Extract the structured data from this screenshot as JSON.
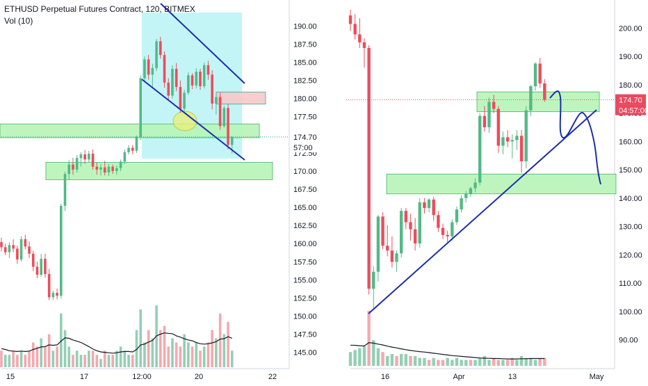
{
  "header": {
    "title": "ETHUSD Perpetual Futures Contract, 120, BITMEX",
    "indicator": "Vol (10)"
  },
  "colors": {
    "up": "#53b987",
    "down": "#eb4d5c",
    "vol_up": "#93cfb4",
    "vol_down": "#f3a9ae",
    "zone_green": "#b8f5b8",
    "zone_green_stroke": "#3aa757",
    "zone_red": "#f7c9c9",
    "wedge": "#b8f3f5",
    "line_blue": "#1c2fa8",
    "price_tag": "#e84a5f",
    "price_tag_dark": "#e84a5f"
  },
  "chart_data": [
    {
      "type": "candlestick",
      "title": "ETHUSD Perpetual Futures Contract, 120, BITMEX",
      "ylim": [
        144.0,
        191.0
      ],
      "y_ticks": [
        "190.00",
        "187.50",
        "185.00",
        "182.50",
        "180.00",
        "177.50",
        "175.00",
        "172.50",
        "170.00",
        "167.50",
        "165.00",
        "162.50",
        "160.00",
        "157.50",
        "155.00",
        "152.50",
        "150.00",
        "147.50",
        "145.00"
      ],
      "x_ticks": [
        "15",
        "17",
        "12:00",
        "20",
        "22"
      ],
      "last_price": "174.70",
      "countdown": "57:00",
      "candles": [
        [
          160.2,
          160.8,
          158.9,
          159.5
        ],
        [
          159.5,
          160.0,
          158.4,
          158.8
        ],
        [
          158.8,
          160.2,
          158.0,
          159.8
        ],
        [
          159.8,
          160.6,
          158.8,
          159.3
        ],
        [
          159.3,
          159.7,
          157.2,
          157.8
        ],
        [
          157.8,
          161.0,
          157.5,
          160.6
        ],
        [
          160.6,
          161.2,
          159.2,
          159.6
        ],
        [
          159.6,
          160.3,
          158.0,
          158.6
        ],
        [
          158.6,
          159.0,
          156.2,
          156.8
        ],
        [
          156.8,
          157.5,
          155.2,
          155.7
        ],
        [
          155.7,
          158.6,
          155.4,
          157.9
        ],
        [
          157.9,
          158.6,
          155.3,
          155.8
        ],
        [
          155.8,
          156.5,
          152.2,
          152.6
        ],
        [
          152.6,
          153.5,
          152.2,
          153.2
        ],
        [
          153.2,
          153.8,
          152.3,
          152.8
        ],
        [
          152.8,
          165.5,
          152.4,
          165.2
        ],
        [
          165.2,
          169.9,
          164.5,
          169.6
        ],
        [
          169.6,
          171.5,
          168.8,
          170.9
        ],
        [
          170.9,
          171.8,
          169.5,
          170.2
        ],
        [
          170.2,
          172.2,
          169.8,
          171.8
        ],
        [
          171.8,
          172.6,
          170.6,
          172.3
        ],
        [
          172.3,
          172.9,
          171.0,
          171.6
        ],
        [
          171.6,
          172.8,
          171.2,
          172.4
        ],
        [
          172.4,
          173.0,
          170.2,
          170.6
        ],
        [
          170.6,
          171.2,
          169.5,
          170.2
        ],
        [
          170.2,
          171.0,
          169.4,
          170.5
        ],
        [
          170.5,
          171.4,
          169.4,
          169.8
        ],
        [
          169.8,
          171.0,
          169.3,
          170.6
        ],
        [
          170.6,
          170.9,
          169.6,
          170.0
        ],
        [
          170.0,
          170.8,
          169.5,
          170.4
        ],
        [
          170.4,
          171.6,
          170.0,
          171.3
        ],
        [
          171.3,
          173.0,
          171.0,
          172.6
        ],
        [
          172.6,
          173.6,
          172.3,
          173.2
        ],
        [
          173.2,
          173.6,
          172.3,
          172.8
        ],
        [
          172.8,
          174.9,
          172.5,
          174.7
        ],
        [
          174.7,
          183.2,
          174.3,
          182.8
        ],
        [
          182.8,
          185.8,
          182.4,
          185.4
        ],
        [
          185.4,
          186.0,
          182.6,
          183.3
        ],
        [
          183.3,
          184.8,
          181.6,
          184.2
        ],
        [
          184.2,
          188.2,
          183.8,
          187.9
        ],
        [
          187.9,
          188.5,
          185.5,
          186.0
        ],
        [
          186.0,
          186.5,
          181.5,
          182.2
        ],
        [
          182.2,
          182.8,
          179.8,
          180.4
        ],
        [
          180.4,
          184.6,
          180.0,
          184.1
        ],
        [
          184.1,
          184.9,
          181.0,
          181.6
        ],
        [
          181.6,
          182.5,
          178.0,
          178.6
        ],
        [
          178.6,
          181.2,
          178.3,
          180.8
        ],
        [
          180.8,
          183.6,
          180.5,
          183.2
        ],
        [
          183.2,
          183.5,
          181.3,
          181.8
        ],
        [
          181.8,
          184.2,
          181.4,
          183.7
        ],
        [
          183.7,
          184.1,
          181.2,
          181.7
        ],
        [
          181.7,
          185.0,
          181.4,
          184.6
        ],
        [
          184.6,
          185.2,
          182.6,
          183.3
        ],
        [
          183.3,
          183.9,
          178.5,
          179.3
        ],
        [
          179.3,
          180.6,
          177.8,
          180.2
        ],
        [
          180.2,
          180.8,
          175.7,
          176.2
        ],
        [
          176.2,
          179.0,
          176.0,
          178.7
        ],
        [
          178.7,
          179.2,
          173.0,
          173.6
        ],
        [
          173.6,
          174.8,
          172.4,
          174.7
        ]
      ],
      "volumes": [
        [
          4,
          "down"
        ],
        [
          3,
          "up"
        ],
        [
          3,
          "up"
        ],
        [
          4,
          "down"
        ],
        [
          3,
          "down"
        ],
        [
          4,
          "up"
        ],
        [
          3,
          "down"
        ],
        [
          4,
          "down"
        ],
        [
          6,
          "down"
        ],
        [
          5,
          "down"
        ],
        [
          7,
          "up"
        ],
        [
          5,
          "down"
        ],
        [
          8,
          "down"
        ],
        [
          4,
          "up"
        ],
        [
          5,
          "down"
        ],
        [
          13,
          "up"
        ],
        [
          9,
          "up"
        ],
        [
          5,
          "up"
        ],
        [
          3,
          "down"
        ],
        [
          4,
          "up"
        ],
        [
          3,
          "up"
        ],
        [
          3,
          "down"
        ],
        [
          4,
          "up"
        ],
        [
          4,
          "down"
        ],
        [
          3,
          "down"
        ],
        [
          2,
          "up"
        ],
        [
          4,
          "down"
        ],
        [
          3,
          "up"
        ],
        [
          3,
          "down"
        ],
        [
          4,
          "up"
        ],
        [
          5,
          "up"
        ],
        [
          4,
          "up"
        ],
        [
          3,
          "up"
        ],
        [
          3,
          "down"
        ],
        [
          9,
          "up"
        ],
        [
          14,
          "up"
        ],
        [
          6,
          "up"
        ],
        [
          9,
          "down"
        ],
        [
          7,
          "up"
        ],
        [
          15,
          "up"
        ],
        [
          9,
          "down"
        ],
        [
          10,
          "down"
        ],
        [
          5,
          "down"
        ],
        [
          7,
          "up"
        ],
        [
          6,
          "down"
        ],
        [
          5,
          "down"
        ],
        [
          8,
          "up"
        ],
        [
          6,
          "up"
        ],
        [
          5,
          "down"
        ],
        [
          6,
          "up"
        ],
        [
          4,
          "down"
        ],
        [
          5,
          "up"
        ],
        [
          6,
          "down"
        ],
        [
          9,
          "down"
        ],
        [
          7,
          "up"
        ],
        [
          13,
          "down"
        ],
        [
          8,
          "up"
        ],
        [
          11,
          "down"
        ],
        [
          4,
          "up"
        ]
      ],
      "volume_ma": [
        4.5,
        4.3,
        4.0,
        3.9,
        3.8,
        3.9,
        3.8,
        3.9,
        4.3,
        4.6,
        4.9,
        5.0,
        5.4,
        5.3,
        5.4,
        6.3,
        7.1,
        7.0,
        6.6,
        6.3,
        6.0,
        5.5,
        5.0,
        4.4,
        4.0,
        3.7,
        3.6,
        3.5,
        3.4,
        3.5,
        3.7,
        3.8,
        3.8,
        3.7,
        4.3,
        5.4,
        5.6,
        6.1,
        6.5,
        7.6,
        8.0,
        8.3,
        8.2,
        8.1,
        7.6,
        7.3,
        6.9,
        6.6,
        6.4,
        6.0,
        5.7,
        5.6,
        5.7,
        5.9,
        6.2,
        6.8,
        6.9,
        7.4,
        7.0
      ]
    },
    {
      "type": "candlestick",
      "ylim": [
        83.0,
        207.0
      ],
      "y_ticks": [
        "200.00",
        "190.00",
        "180.00",
        "170.00",
        "160.00",
        "150.00",
        "140.00",
        "130.00",
        "120.00",
        "110.00",
        "100.00",
        "90.00"
      ],
      "x_ticks": [
        "16",
        "Apr",
        "13",
        "May"
      ],
      "last_price": "174.70",
      "countdown": "04:57:00",
      "candles": [
        [
          204.5,
          206.5,
          199.0,
          201.5
        ],
        [
          201.5,
          205.0,
          196.0,
          197.8
        ],
        [
          197.8,
          203.5,
          193.0,
          195.0
        ],
        [
          195.0,
          196.5,
          186.0,
          193.0
        ],
        [
          193.0,
          194.0,
          106.0,
          108.0
        ],
        [
          108.0,
          116.0,
          100.5,
          114.0
        ],
        [
          114.0,
          134.0,
          110.5,
          133.5
        ],
        [
          133.5,
          135.0,
          122.0,
          123.2
        ],
        [
          123.2,
          130.5,
          119.5,
          121.5
        ],
        [
          121.5,
          126.5,
          115.5,
          117.5
        ],
        [
          117.5,
          121.5,
          114.0,
          120.5
        ],
        [
          120.5,
          136.5,
          119.0,
          135.5
        ],
        [
          135.5,
          136.5,
          129.0,
          131.5
        ],
        [
          131.5,
          134.5,
          125.0,
          129.0
        ],
        [
          129.0,
          133.0,
          121.5,
          124.0
        ],
        [
          124.0,
          140.0,
          122.5,
          138.5
        ],
        [
          138.5,
          140.0,
          134.5,
          136.5
        ],
        [
          136.5,
          140.0,
          135.0,
          139.5
        ],
        [
          139.5,
          140.5,
          132.0,
          134.0
        ],
        [
          134.0,
          135.5,
          128.0,
          129.5
        ],
        [
          129.5,
          131.0,
          125.5,
          127.0
        ],
        [
          127.0,
          128.5,
          124.5,
          126.5
        ],
        [
          126.5,
          132.5,
          125.0,
          131.5
        ],
        [
          131.5,
          137.0,
          130.5,
          136.0
        ],
        [
          136.0,
          141.0,
          135.0,
          140.0
        ],
        [
          140.0,
          142.5,
          138.5,
          141.5
        ],
        [
          141.5,
          144.0,
          140.5,
          143.5
        ],
        [
          143.5,
          147.0,
          142.0,
          145.5
        ],
        [
          145.5,
          170.0,
          144.5,
          169.0
        ],
        [
          169.0,
          172.5,
          163.5,
          165.0
        ],
        [
          165.0,
          175.5,
          163.0,
          174.0
        ],
        [
          174.0,
          176.5,
          170.0,
          171.5
        ],
        [
          171.5,
          172.5,
          156.0,
          158.5
        ],
        [
          158.5,
          163.5,
          155.5,
          161.5
        ],
        [
          161.5,
          164.0,
          158.0,
          160.0
        ],
        [
          160.0,
          162.5,
          154.0,
          160.5
        ],
        [
          160.5,
          164.0,
          157.0,
          162.0
        ],
        [
          162.0,
          164.0,
          149.0,
          153.0
        ],
        [
          153.0,
          172.5,
          150.5,
          171.0
        ],
        [
          171.0,
          180.0,
          169.0,
          179.5
        ],
        [
          179.5,
          188.0,
          178.0,
          187.5
        ],
        [
          187.5,
          189.5,
          179.0,
          180.5
        ],
        [
          180.5,
          182.0,
          174.0,
          174.7
        ]
      ],
      "volumes": [
        [
          7,
          "up"
        ],
        [
          8,
          "up"
        ],
        [
          9,
          "up"
        ],
        [
          10,
          "up"
        ],
        [
          28,
          "down"
        ],
        [
          13,
          "up"
        ],
        [
          9,
          "up"
        ],
        [
          7,
          "down"
        ],
        [
          5,
          "up"
        ],
        [
          6,
          "up"
        ],
        [
          5,
          "down"
        ],
        [
          6,
          "up"
        ],
        [
          6,
          "up"
        ],
        [
          5,
          "down"
        ],
        [
          5,
          "up"
        ],
        [
          4,
          "up"
        ],
        [
          4,
          "up"
        ],
        [
          3,
          "down"
        ],
        [
          4,
          "up"
        ],
        [
          3,
          "down"
        ],
        [
          3,
          "down"
        ],
        [
          4,
          "up"
        ],
        [
          3,
          "up"
        ],
        [
          4,
          "up"
        ],
        [
          3,
          "up"
        ],
        [
          3,
          "up"
        ],
        [
          3,
          "down"
        ],
        [
          3,
          "up"
        ],
        [
          4,
          "up"
        ],
        [
          5,
          "up"
        ],
        [
          3,
          "up"
        ],
        [
          4,
          "down"
        ],
        [
          3,
          "down"
        ],
        [
          3,
          "up"
        ],
        [
          3,
          "down"
        ],
        [
          4,
          "down"
        ],
        [
          3,
          "up"
        ],
        [
          5,
          "up"
        ],
        [
          4,
          "up"
        ],
        [
          4,
          "up"
        ],
        [
          3,
          "up"
        ],
        [
          4,
          "down"
        ],
        [
          4,
          "down"
        ]
      ],
      "volume_ma": [
        10.5,
        10.4,
        10.2,
        10.1,
        11.8,
        11.5,
        11.0,
        10.6,
        10.0,
        9.5,
        9.1,
        8.6,
        8.2,
        7.8,
        7.5,
        7.2,
        7.0,
        6.7,
        6.4,
        6.1,
        5.8,
        5.5,
        5.2,
        5.0,
        4.8,
        4.6,
        4.4,
        4.2,
        4.0,
        3.9,
        3.8,
        3.7,
        3.7,
        3.6,
        3.5,
        3.5,
        3.5,
        3.6,
        3.6,
        3.7,
        3.7,
        3.7,
        3.7
      ]
    }
  ]
}
